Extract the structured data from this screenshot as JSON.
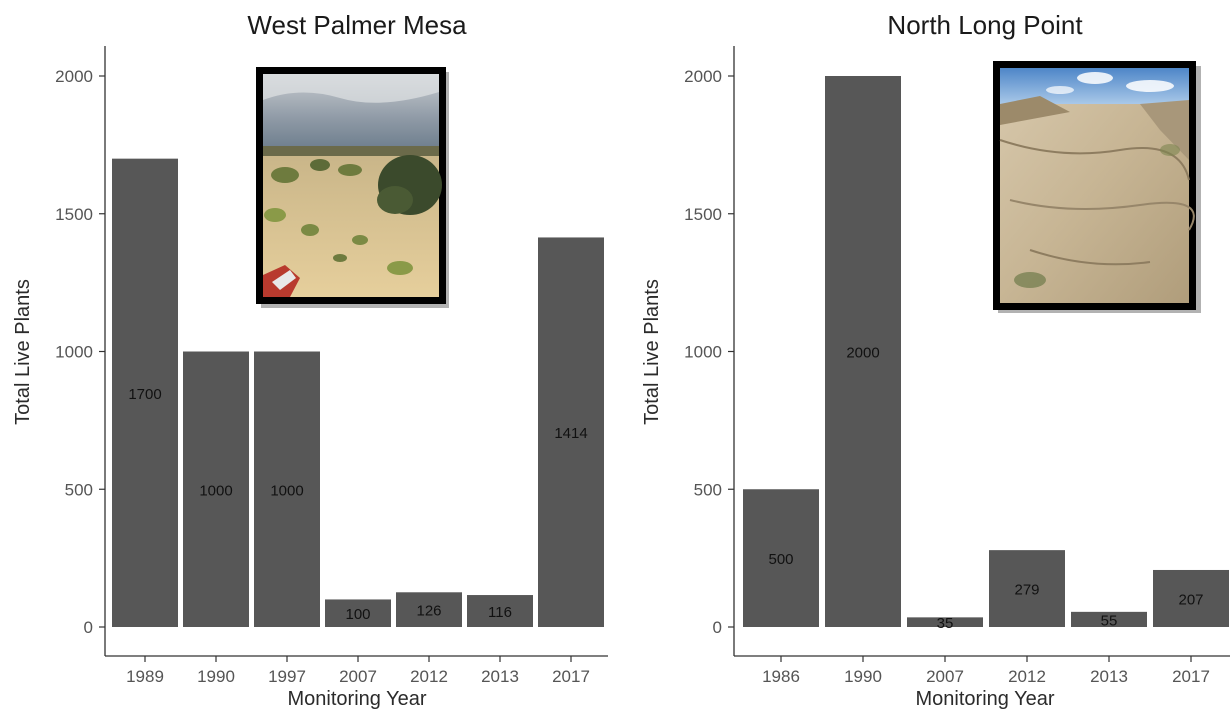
{
  "chart_data": [
    {
      "type": "bar",
      "title": "West Palmer Mesa",
      "xlabel": "Monitoring Year",
      "ylabel": "Total Live Plants",
      "categories": [
        "1989",
        "1990",
        "1997",
        "2007",
        "2012",
        "2013",
        "2017"
      ],
      "values": [
        1700,
        1000,
        1000,
        100,
        126,
        116,
        1414
      ],
      "data_labels": [
        "1700",
        "1000",
        "1000",
        "100",
        "126",
        "116",
        "1414"
      ],
      "ylim": [
        0,
        2100
      ],
      "yticks": [
        0,
        500,
        1000,
        1500,
        2000
      ],
      "bar_color": "#575757",
      "grid": false,
      "legend": "none",
      "inset_image": "photo-desert-shrubland"
    },
    {
      "type": "bar",
      "title": "North Long Point",
      "xlabel": "Monitoring Year",
      "ylabel": "Total Live Plants",
      "categories": [
        "1986",
        "1990",
        "2007",
        "2012",
        "2013",
        "2017"
      ],
      "values": [
        500,
        2000,
        35,
        279,
        55,
        207
      ],
      "data_labels": [
        "500",
        "2000",
        "35",
        "279",
        "55",
        "207"
      ],
      "ylim": [
        0,
        2100
      ],
      "yticks": [
        0,
        500,
        1000,
        1500,
        2000
      ],
      "bar_color": "#575757",
      "grid": false,
      "legend": "none",
      "inset_image": "photo-sandstone-slickrock"
    }
  ]
}
